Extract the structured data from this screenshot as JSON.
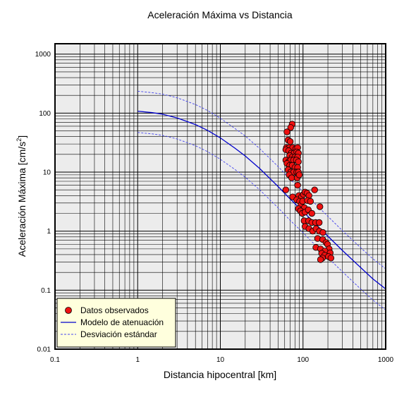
{
  "chart_data": {
    "type": "scatter",
    "title": "Aceleración Máxima vs Distancia",
    "xlabel": "Distancia hipocentral [km]",
    "ylabel_main": "Aceleración Máxima [cm/s",
    "ylabel_sup": "2",
    "ylabel_end": "]",
    "xscale": "log",
    "yscale": "log",
    "xlim": [
      0.1,
      1000
    ],
    "ylim": [
      0.01,
      1500
    ],
    "grid": true,
    "legend_position": "bottom-left",
    "x_ticks": [
      {
        "v": 0.1,
        "label": "0.1"
      },
      {
        "v": 1,
        "label": "1"
      },
      {
        "v": 10,
        "label": "10"
      },
      {
        "v": 100,
        "label": "100"
      },
      {
        "v": 1000,
        "label": "1000"
      }
    ],
    "y_ticks": [
      {
        "v": 0.01,
        "label": "0.01"
      },
      {
        "v": 0.1,
        "label": "0.1"
      },
      {
        "v": 1,
        "label": "1"
      },
      {
        "v": 10,
        "label": "10"
      },
      {
        "v": 100,
        "label": "100"
      },
      {
        "v": 1000,
        "label": "1000"
      }
    ],
    "series": [
      {
        "name": "Datos observados",
        "kind": "points",
        "color": "#ee1111",
        "points": [
          [
            74,
            65
          ],
          [
            71,
            57
          ],
          [
            64,
            48
          ],
          [
            66,
            35
          ],
          [
            70,
            33
          ],
          [
            63,
            26
          ],
          [
            68,
            26
          ],
          [
            75,
            26
          ],
          [
            82,
            25
          ],
          [
            86,
            26
          ],
          [
            62,
            24
          ],
          [
            67,
            23
          ],
          [
            72,
            21
          ],
          [
            78,
            21
          ],
          [
            84,
            22
          ],
          [
            88,
            21
          ],
          [
            69,
            19
          ],
          [
            74,
            18
          ],
          [
            80,
            18
          ],
          [
            86,
            18
          ],
          [
            62,
            16
          ],
          [
            67,
            15
          ],
          [
            71,
            16
          ],
          [
            77,
            16
          ],
          [
            83,
            16
          ],
          [
            88,
            15
          ],
          [
            64,
            14
          ],
          [
            69,
            13
          ],
          [
            74,
            13
          ],
          [
            80,
            12
          ],
          [
            86,
            12
          ],
          [
            66,
            11
          ],
          [
            71,
            10
          ],
          [
            77,
            10
          ],
          [
            84,
            10
          ],
          [
            88,
            10
          ],
          [
            68,
            9
          ],
          [
            73,
            8
          ],
          [
            85,
            8
          ],
          [
            90,
            9
          ],
          [
            62,
            5
          ],
          [
            75,
            3.8
          ],
          [
            86,
            6
          ],
          [
            89,
            4
          ],
          [
            96,
            3.8
          ],
          [
            101,
            4.2
          ],
          [
            106,
            4.6
          ],
          [
            112,
            4.4
          ],
          [
            118,
            4
          ],
          [
            138,
            5
          ],
          [
            84,
            3.4
          ],
          [
            91,
            3.2
          ],
          [
            95,
            2.8
          ],
          [
            99,
            3.2
          ],
          [
            104,
            2.5
          ],
          [
            113,
            3.3
          ],
          [
            123,
            3.2
          ],
          [
            88,
            2.4
          ],
          [
            93,
            2.2
          ],
          [
            98,
            2
          ],
          [
            106,
            2.1
          ],
          [
            116,
            2.3
          ],
          [
            128,
            2
          ],
          [
            160,
            2.6
          ],
          [
            103,
            1.5
          ],
          [
            117,
            1.5
          ],
          [
            128,
            1.4
          ],
          [
            142,
            1.4
          ],
          [
            157,
            1.4
          ],
          [
            106,
            1.2
          ],
          [
            118,
            1.1
          ],
          [
            131,
            1
          ],
          [
            144,
            1.1
          ],
          [
            158,
            1
          ],
          [
            174,
            0.95
          ],
          [
            150,
            0.75
          ],
          [
            173,
            0.72
          ],
          [
            190,
            0.64
          ],
          [
            198,
            0.6
          ],
          [
            207,
            0.5
          ],
          [
            143,
            0.53
          ],
          [
            163,
            0.5
          ],
          [
            184,
            0.46
          ],
          [
            213,
            0.43
          ],
          [
            168,
            0.42
          ],
          [
            183,
            0.39
          ],
          [
            203,
            0.37
          ],
          [
            172,
            0.35
          ],
          [
            218,
            0.35
          ],
          [
            163,
            0.33
          ]
        ]
      },
      {
        "name": "Modelo de atenuación",
        "kind": "line",
        "color": "#0000cc",
        "dash": "none",
        "x": [
          1,
          1.5,
          2,
          3,
          5,
          7,
          10,
          15,
          20,
          30,
          50,
          70,
          100,
          150,
          200,
          300,
          500,
          700,
          1000
        ],
        "y": [
          108,
          102,
          96,
          83,
          64,
          51,
          38,
          25.5,
          18.8,
          11.5,
          5.7,
          3.5,
          2.15,
          1.22,
          0.82,
          0.47,
          0.24,
          0.155,
          0.105
        ]
      },
      {
        "name": "Desviación estándar",
        "kind": "line",
        "color": "#4444ee",
        "dash": "3,2",
        "x": [
          1,
          1.5,
          2,
          3,
          5,
          7,
          10,
          15,
          20,
          30,
          50,
          70,
          100,
          150,
          200,
          300,
          500,
          700,
          1000
        ],
        "y": [
          235,
          222,
          210,
          182,
          140,
          111,
          82,
          55,
          41,
          25,
          12.4,
          7.6,
          4.7,
          2.65,
          1.78,
          1.02,
          0.52,
          0.34,
          0.23
        ]
      },
      {
        "name": "",
        "kind": "line",
        "color": "#4444ee",
        "dash": "3,2",
        "x": [
          1,
          1.5,
          2,
          3,
          5,
          7,
          10,
          15,
          20,
          30,
          50,
          70,
          100,
          150,
          200,
          300,
          500,
          700,
          1000
        ],
        "y": [
          47,
          44.5,
          42,
          36.5,
          28,
          22.3,
          16.5,
          11.1,
          8.2,
          5,
          2.48,
          1.52,
          0.94,
          0.53,
          0.356,
          0.205,
          0.104,
          0.068,
          0.046
        ]
      }
    ],
    "legend": {
      "entries": [
        {
          "label": "Datos observados",
          "symbol": "dot"
        },
        {
          "label": "Modelo de atenuación",
          "symbol": "solid"
        },
        {
          "label": "Desviación estándar",
          "symbol": "dashed"
        }
      ],
      "background": "#ffffdd"
    },
    "colors": {
      "plot_background": "#ececec",
      "grid": "#000000"
    }
  }
}
